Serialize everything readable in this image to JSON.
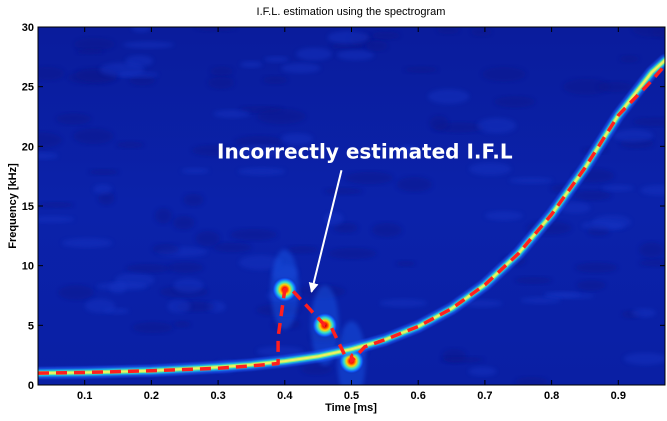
{
  "chart_data": {
    "type": "heatmap",
    "title": "I.F.L. estimation using the spectrogram",
    "xlabel": "Time [ms]",
    "ylabel": "Frequency [kHz]",
    "xlim": [
      0.03,
      0.97
    ],
    "ylim": [
      0,
      30
    ],
    "xticks": [
      0.1,
      0.2,
      0.3,
      0.4,
      0.5,
      0.6,
      0.7,
      0.8,
      0.9
    ],
    "yticks": [
      0,
      5,
      10,
      15,
      20,
      25,
      30
    ],
    "grid": false,
    "colormap": "jet",
    "colors": {
      "background": "#0b1fa8",
      "ridge": "#e6f05a",
      "estimate": "#ff1e1e",
      "annotation": "#ffffff"
    },
    "true_ifl": {
      "x": [
        0.03,
        0.1,
        0.2,
        0.3,
        0.35,
        0.4,
        0.45,
        0.5,
        0.55,
        0.6,
        0.65,
        0.7,
        0.75,
        0.8,
        0.85,
        0.9,
        0.95,
        0.97
      ],
      "y": [
        1.0,
        1.05,
        1.2,
        1.5,
        1.7,
        2.0,
        2.4,
        3.0,
        3.8,
        4.9,
        6.4,
        8.4,
        11.0,
        14.3,
        18.2,
        22.6,
        26.2,
        27.2
      ]
    },
    "estimated_ifl": {
      "x": [
        0.03,
        0.1,
        0.2,
        0.3,
        0.35,
        0.39,
        0.39,
        0.4,
        0.41,
        0.46,
        0.47,
        0.49,
        0.5,
        0.5,
        0.52,
        0.55,
        0.6,
        0.65,
        0.7,
        0.75,
        0.8,
        0.85,
        0.9,
        0.95,
        0.97
      ],
      "y": [
        1.0,
        1.05,
        1.2,
        1.4,
        1.6,
        1.8,
        4.0,
        8.0,
        8.0,
        5.0,
        4.8,
        2.5,
        2.5,
        2.0,
        3.2,
        3.8,
        4.9,
        6.4,
        8.4,
        11.0,
        14.3,
        18.2,
        22.6,
        25.5,
        26.8
      ]
    },
    "blobs": [
      {
        "x": 0.4,
        "y": 8.0,
        "level": 0.85
      },
      {
        "x": 0.46,
        "y": 5.0,
        "level": 0.8
      },
      {
        "x": 0.5,
        "y": 2.0,
        "level": 0.7
      }
    ],
    "annotation": {
      "text": "Incorrectly estimated I.F.L",
      "text_at": [
        0.52,
        19.0
      ],
      "arrow_from": [
        0.485,
        18.0
      ],
      "arrow_to": [
        0.44,
        7.8
      ]
    }
  }
}
